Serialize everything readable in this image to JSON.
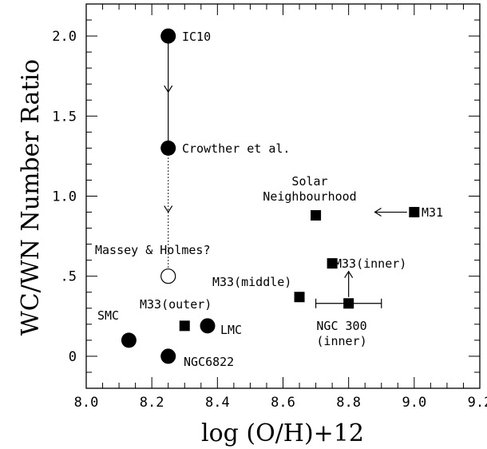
{
  "chart_data": {
    "type": "scatter",
    "xlabel": "log (O/H)+12",
    "ylabel": "WC/WN Number Ratio",
    "xlim": [
      8.0,
      9.2
    ],
    "ylim": [
      -0.2,
      2.2
    ],
    "grid": false,
    "x_ticks": [
      {
        "value": 8.0,
        "label": "8.0"
      },
      {
        "value": 8.2,
        "label": "8.2"
      },
      {
        "value": 8.4,
        "label": "8.4"
      },
      {
        "value": 8.6,
        "label": "8.6"
      },
      {
        "value": 8.8,
        "label": "8.8"
      },
      {
        "value": 9.0,
        "label": "9.0"
      },
      {
        "value": 9.2,
        "label": "9.2"
      }
    ],
    "y_ticks": [
      {
        "value": 0.0,
        "label": "0"
      },
      {
        "value": 0.5,
        "label": ".5"
      },
      {
        "value": 1.0,
        "label": "1.0"
      },
      {
        "value": 1.5,
        "label": "1.5"
      },
      {
        "value": 2.0,
        "label": "2.0"
      }
    ],
    "points": [
      {
        "label": "IC10",
        "x": 8.25,
        "y": 2.0,
        "marker": "circle"
      },
      {
        "label": "Crowther et al.",
        "x": 8.25,
        "y": 1.3,
        "marker": "circle"
      },
      {
        "label": "Massey & Holmes?",
        "x": 8.25,
        "y": 0.5,
        "marker": "open-circle"
      },
      {
        "label": "SMC",
        "x": 8.13,
        "y": 0.1,
        "marker": "circle"
      },
      {
        "label": "NGC6822",
        "x": 8.25,
        "y": 0.0,
        "marker": "circle"
      },
      {
        "label": "LMC",
        "x": 8.37,
        "y": 0.19,
        "marker": "circle"
      },
      {
        "label": "M33(outer)",
        "x": 8.3,
        "y": 0.19,
        "marker": "square"
      },
      {
        "label": "M33(middle)",
        "x": 8.65,
        "y": 0.37,
        "marker": "square"
      },
      {
        "label": "M33(inner)",
        "x": 8.75,
        "y": 0.58,
        "marker": "square"
      },
      {
        "label": "NGC 300 (inner)",
        "x": 8.8,
        "y": 0.33,
        "marker": "square",
        "xerr": [
          8.7,
          8.9
        ]
      },
      {
        "label": "Solar Neighbourhood",
        "x": 8.7,
        "y": 0.88,
        "marker": "square"
      },
      {
        "label": "M31",
        "x": 9.0,
        "y": 0.9,
        "marker": "square"
      }
    ]
  },
  "labels": {
    "ic10": "IC10",
    "crowther": "Crowther et al.",
    "massey": "Massey & Holmes?",
    "smc": "SMC",
    "ngc6822": "NGC6822",
    "lmc": "LMC",
    "m33_outer": "M33(outer)",
    "m33_middle": "M33(middle)",
    "m33_inner": "M33(inner)",
    "ngc300_line1": "NGC 300",
    "ngc300_line2": "(inner)",
    "solar_line1": "Solar",
    "solar_line2": "Neighbourhood",
    "m31": "M31"
  }
}
